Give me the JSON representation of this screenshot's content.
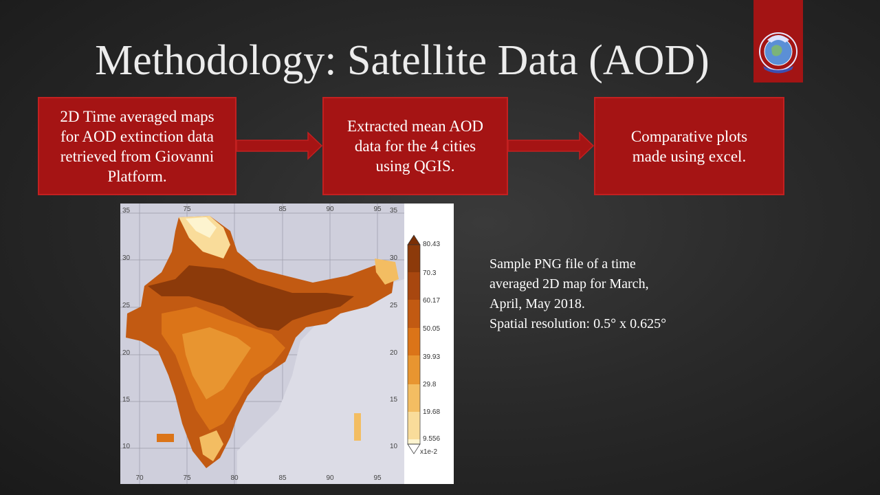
{
  "slide": {
    "title": "Methodology: Satellite Data (AOD)"
  },
  "logo": {
    "icon": "earth-globe-emblem-icon",
    "color": "#a31414"
  },
  "flow": {
    "box1": [
      "2D Time averaged maps",
      "for AOD extinction data",
      "retrieved from Giovanni",
      "Platform."
    ],
    "box2": [
      "Extracted mean AOD",
      "data for the 4 cities",
      "using QGIS."
    ],
    "box3": [
      "Comparative plots",
      "made using excel."
    ],
    "box_color": "#a51414"
  },
  "map": {
    "lon_ticks": [
      "70",
      "75",
      "80",
      "85",
      "90",
      "95"
    ],
    "lat_ticks": [
      "35",
      "30",
      "25",
      "20",
      "15",
      "10"
    ],
    "colorbar": {
      "labels": [
        "80.43",
        "70.3",
        "60.17",
        "50.05",
        "39.93",
        "29.8",
        "19.68",
        "9.556"
      ],
      "units": "x1e-2",
      "colors": [
        "#8c3a0a",
        "#a8470f",
        "#c25a12",
        "#db7418",
        "#e89530",
        "#f3bd62",
        "#f9dc9a",
        "#fdf4cf"
      ]
    }
  },
  "caption": {
    "lines": [
      "Sample PNG file of  a time",
      "averaged 2D map for March,",
      "April, May 2018.",
      "Spatial resolution: 0.5° x 0.625°"
    ]
  }
}
